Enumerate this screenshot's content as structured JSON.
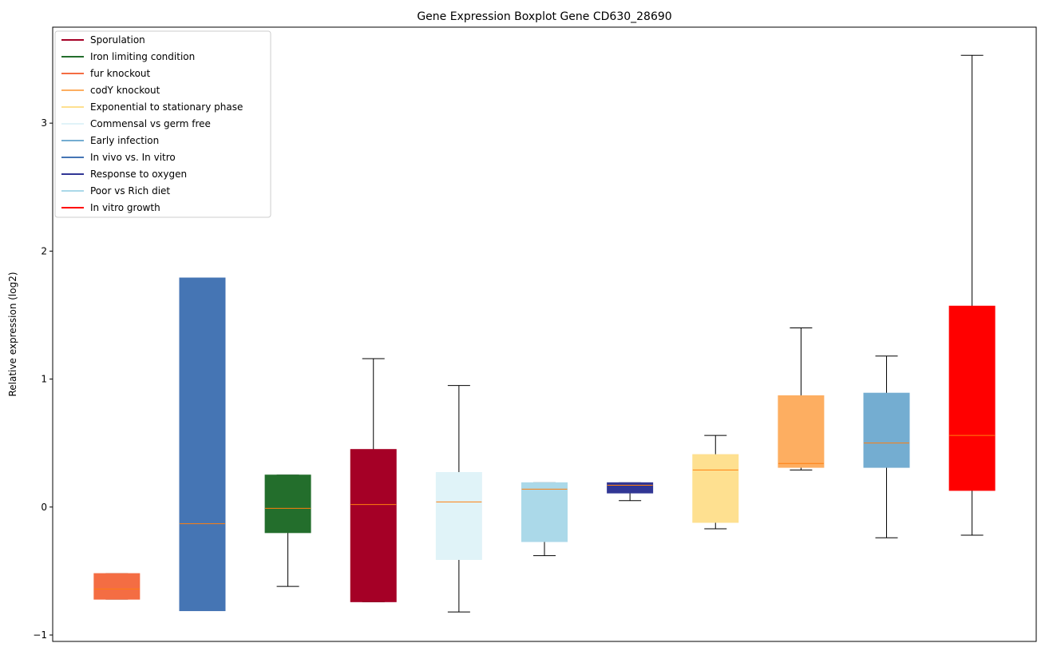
{
  "chart_data": {
    "type": "boxplot",
    "title": "Gene Expression Boxplot Gene CD630_28690",
    "xlabel": "",
    "ylabel": "Relative expression (log2)",
    "ylim": [
      -1.05,
      3.75
    ],
    "yticks": [
      -1,
      0,
      1,
      2,
      3
    ],
    "legend_position": "top-left",
    "median_color": "#ff7f0e",
    "legend": [
      {
        "label": "Sporulation",
        "color": "#a50026"
      },
      {
        "label": "Iron limiting condition",
        "color": "#236e2c"
      },
      {
        "label": "fur knockout",
        "color": "#f46d43"
      },
      {
        "label": "codY knockout",
        "color": "#fdae61"
      },
      {
        "label": "Exponential to stationary phase",
        "color": "#fee090"
      },
      {
        "label": "Commensal vs germ free",
        "color": "#e0f3f8"
      },
      {
        "label": "Early infection",
        "color": "#74add1"
      },
      {
        "label": "In vivo vs. In vitro",
        "color": "#4575b4"
      },
      {
        "label": "Response to oxygen",
        "color": "#313695"
      },
      {
        "label": "Poor vs Rich diet",
        "color": "#abd9e9"
      },
      {
        "label": "In vitro growth",
        "color": "#ff0000"
      }
    ],
    "boxes": [
      {
        "condition": "fur knockout",
        "color": "#f46d43",
        "whislo": -0.72,
        "q1": -0.72,
        "median": -0.64,
        "q3": -0.52,
        "whishi": -0.52
      },
      {
        "condition": "In vivo vs. In vitro",
        "color": "#4575b4",
        "whislo": -0.81,
        "q1": -0.81,
        "median": -0.13,
        "q3": 1.79,
        "whishi": 1.79
      },
      {
        "condition": "Iron limiting condition",
        "color": "#236e2c",
        "whislo": -0.62,
        "q1": -0.2,
        "median": -0.01,
        "q3": 0.25,
        "whishi": 0.25
      },
      {
        "condition": "Sporulation",
        "color": "#a50026",
        "whislo": -0.74,
        "q1": -0.74,
        "median": 0.02,
        "q3": 0.45,
        "whishi": 1.16
      },
      {
        "condition": "Commensal vs germ free",
        "color": "#e0f3f8",
        "whislo": -0.82,
        "q1": -0.41,
        "median": 0.04,
        "q3": 0.27,
        "whishi": 0.95
      },
      {
        "condition": "Poor vs Rich diet",
        "color": "#abd9e9",
        "whislo": -0.38,
        "q1": -0.27,
        "median": 0.14,
        "q3": 0.19,
        "whishi": 0.19
      },
      {
        "condition": "Response to oxygen",
        "color": "#313695",
        "whislo": 0.05,
        "q1": 0.11,
        "median": 0.17,
        "q3": 0.19,
        "whishi": 0.19
      },
      {
        "condition": "Exponential to stationary phase",
        "color": "#fee090",
        "whislo": -0.17,
        "q1": -0.12,
        "median": 0.29,
        "q3": 0.41,
        "whishi": 0.56
      },
      {
        "condition": "codY knockout",
        "color": "#fdae61",
        "whislo": 0.29,
        "q1": 0.31,
        "median": 0.34,
        "q3": 0.87,
        "whishi": 1.4
      },
      {
        "condition": "Early infection",
        "color": "#74add1",
        "whislo": -0.24,
        "q1": 0.31,
        "median": 0.5,
        "q3": 0.89,
        "whishi": 1.18
      },
      {
        "condition": "In vitro growth",
        "color": "#ff0000",
        "whislo": -0.22,
        "q1": 0.13,
        "median": 0.56,
        "q3": 1.57,
        "whishi": 3.53
      }
    ]
  }
}
